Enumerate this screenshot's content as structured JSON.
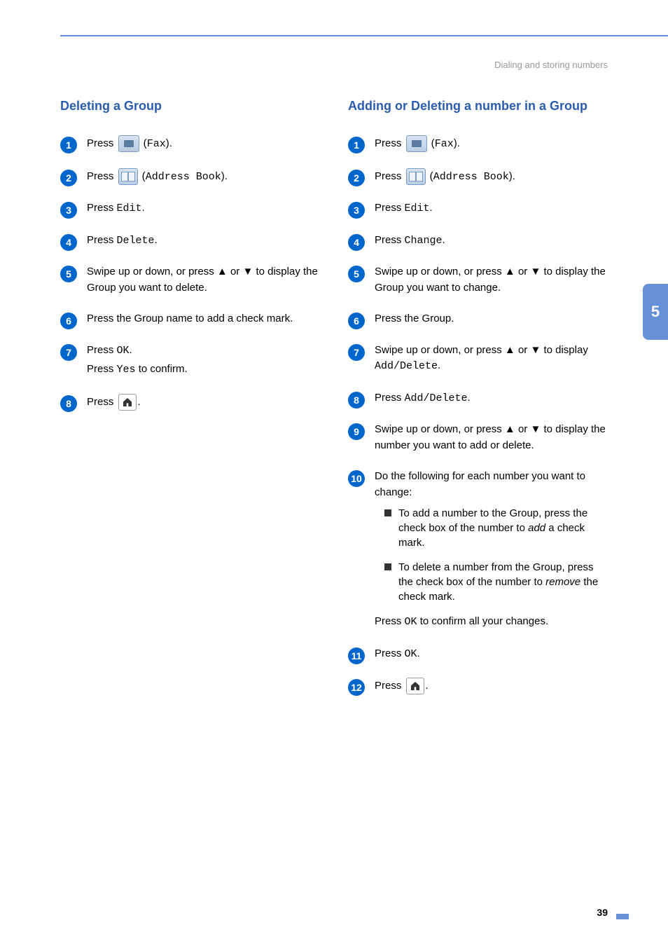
{
  "page": {
    "header": "Dialing and storing numbers",
    "chapter_tab": "5",
    "page_number": "39"
  },
  "colors": {
    "accent": "#6691d9",
    "title": "#2a5db0",
    "step_badge": "#0066cc",
    "header_text": "#999999"
  },
  "left": {
    "title": "Deleting a Group",
    "steps": [
      {
        "n": "1",
        "parts": [
          {
            "t": "Press "
          },
          {
            "icon": "fax"
          },
          {
            "t": " ("
          },
          {
            "mono": "Fax"
          },
          {
            "t": ")."
          }
        ]
      },
      {
        "n": "2",
        "parts": [
          {
            "t": "Press "
          },
          {
            "icon": "book"
          },
          {
            "t": " ("
          },
          {
            "mono": "Address Book"
          },
          {
            "t": ")."
          }
        ]
      },
      {
        "n": "3",
        "parts": [
          {
            "t": "Press "
          },
          {
            "mono": "Edit"
          },
          {
            "t": "."
          }
        ]
      },
      {
        "n": "4",
        "parts": [
          {
            "t": "Press "
          },
          {
            "mono": "Delete"
          },
          {
            "t": "."
          }
        ]
      },
      {
        "n": "5",
        "parts": [
          {
            "t": "Swipe up or down, or press ▲ or ▼ to display the Group you want to delete."
          }
        ]
      },
      {
        "n": "6",
        "parts": [
          {
            "t": "Press the Group name to add a check mark."
          }
        ]
      },
      {
        "n": "7",
        "lines": [
          [
            {
              "t": "Press "
            },
            {
              "mono": "OK"
            },
            {
              "t": "."
            }
          ],
          [
            {
              "t": "Press "
            },
            {
              "mono": "Yes"
            },
            {
              "t": " to confirm."
            }
          ]
        ]
      },
      {
        "n": "8",
        "parts": [
          {
            "t": "Press "
          },
          {
            "icon": "home"
          },
          {
            "t": "."
          }
        ]
      }
    ]
  },
  "right": {
    "title": "Adding or Deleting a number in a Group",
    "steps": [
      {
        "n": "1",
        "parts": [
          {
            "t": "Press "
          },
          {
            "icon": "fax"
          },
          {
            "t": " ("
          },
          {
            "mono": "Fax"
          },
          {
            "t": ")."
          }
        ]
      },
      {
        "n": "2",
        "parts": [
          {
            "t": "Press "
          },
          {
            "icon": "book"
          },
          {
            "t": " ("
          },
          {
            "mono": "Address Book"
          },
          {
            "t": ")."
          }
        ]
      },
      {
        "n": "3",
        "parts": [
          {
            "t": "Press "
          },
          {
            "mono": "Edit"
          },
          {
            "t": "."
          }
        ]
      },
      {
        "n": "4",
        "parts": [
          {
            "t": "Press "
          },
          {
            "mono": "Change"
          },
          {
            "t": "."
          }
        ]
      },
      {
        "n": "5",
        "parts": [
          {
            "t": "Swipe up or down, or press ▲ or ▼ to display the Group you want to change."
          }
        ]
      },
      {
        "n": "6",
        "parts": [
          {
            "t": "Press the Group."
          }
        ]
      },
      {
        "n": "7",
        "parts": [
          {
            "t": "Swipe up or down, or press ▲ or ▼ to display "
          },
          {
            "mono": "Add/Delete"
          },
          {
            "t": "."
          }
        ]
      },
      {
        "n": "8",
        "parts": [
          {
            "t": "Press "
          },
          {
            "mono": "Add/Delete"
          },
          {
            "t": "."
          }
        ]
      },
      {
        "n": "9",
        "parts": [
          {
            "t": "Swipe up or down, or press ▲ or ▼ to display the number you want to add or delete."
          }
        ]
      },
      {
        "n": "10",
        "parts": [
          {
            "t": "Do the following for each number you want to change:"
          }
        ],
        "bullets": [
          [
            {
              "t": "To add a number to the Group, press the check box of the number to "
            },
            {
              "em": "add"
            },
            {
              "t": " a check mark."
            }
          ],
          [
            {
              "t": "To delete a number from the Group, press the check box of the number to "
            },
            {
              "em": "remove"
            },
            {
              "t": " the check mark."
            }
          ]
        ],
        "after": [
          {
            "t": "Press "
          },
          {
            "mono": "OK"
          },
          {
            "t": " to confirm all your changes."
          }
        ]
      },
      {
        "n": "11",
        "parts": [
          {
            "t": "Press "
          },
          {
            "mono": "OK"
          },
          {
            "t": "."
          }
        ]
      },
      {
        "n": "12",
        "parts": [
          {
            "t": "Press "
          },
          {
            "icon": "home"
          },
          {
            "t": "."
          }
        ]
      }
    ]
  }
}
